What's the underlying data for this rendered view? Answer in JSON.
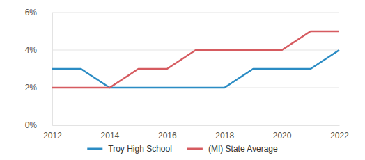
{
  "chart_data": {
    "type": "line",
    "x": [
      2012,
      2013,
      2014,
      2015,
      2016,
      2017,
      2018,
      2019,
      2020,
      2021,
      2022
    ],
    "series": [
      {
        "name": "Troy High School",
        "color": "#2b8cc4",
        "values": [
          3,
          3,
          2,
          2,
          2,
          2,
          2,
          3,
          3,
          3,
          4
        ]
      },
      {
        "name": "(MI) State Average",
        "color": "#d65b60",
        "values": [
          2,
          2,
          2,
          3,
          3,
          4,
          4,
          4,
          4,
          5,
          5
        ]
      }
    ],
    "xlim": [
      2012,
      2022
    ],
    "xticks": [
      2012,
      2014,
      2016,
      2018,
      2020,
      2022
    ],
    "ylim": [
      0,
      6
    ],
    "yticks": [
      {
        "value": 0,
        "label": "0%"
      },
      {
        "value": 2,
        "label": "2%"
      },
      {
        "value": 4,
        "label": "4%"
      },
      {
        "value": 6,
        "label": "6%"
      }
    ],
    "grid": true,
    "legend": "bottom"
  }
}
